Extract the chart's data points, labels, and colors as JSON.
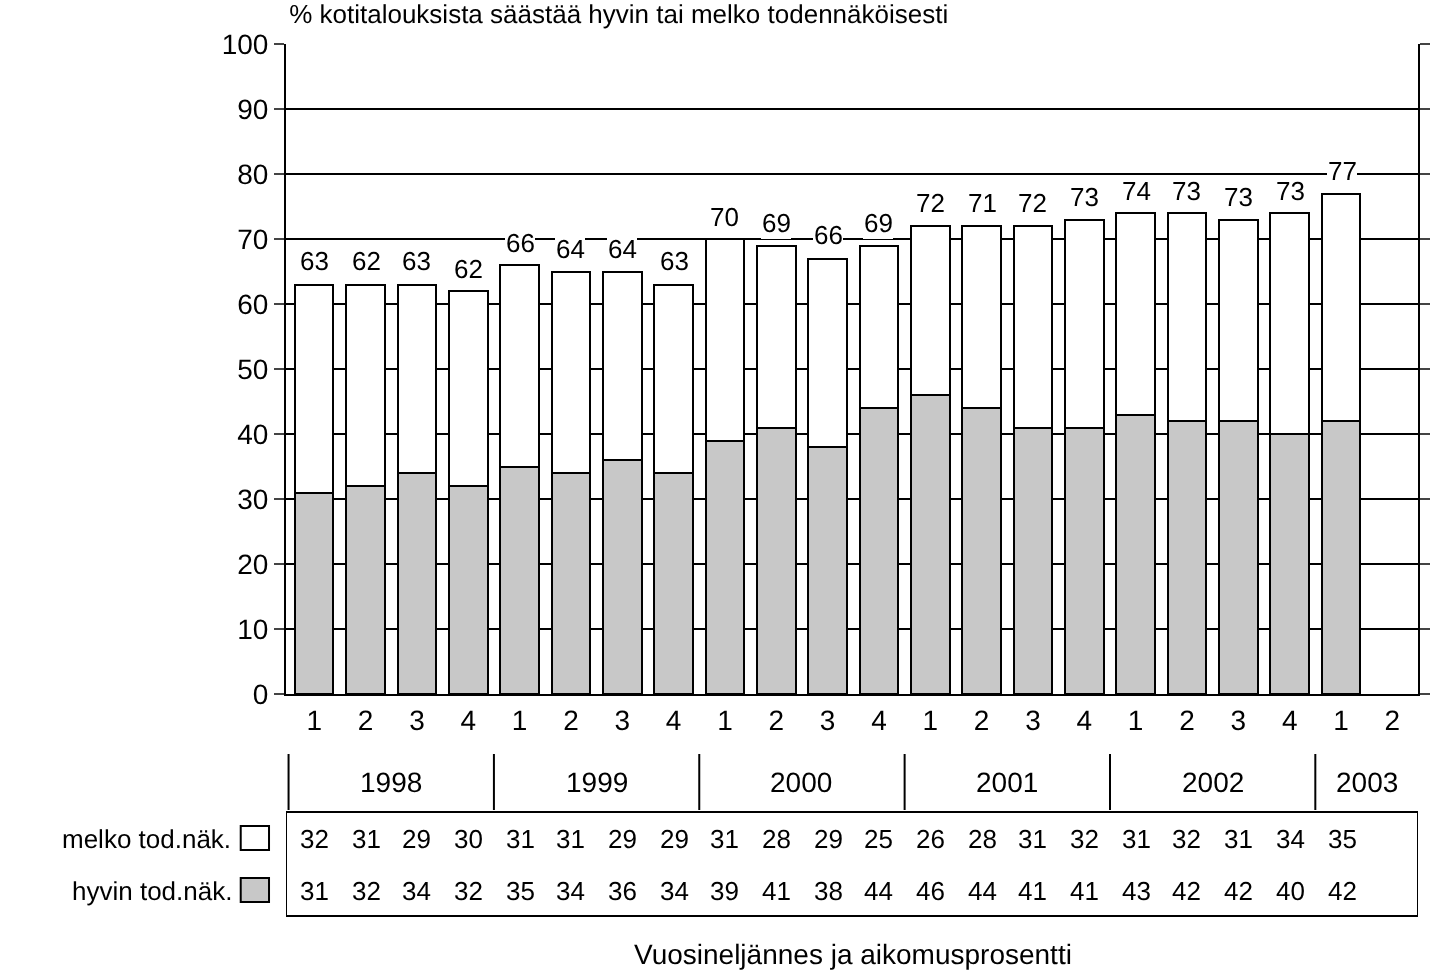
{
  "chart_data": {
    "type": "bar",
    "title": "% kotitalouksista säästää hyvin tai melko todennäköisesti",
    "categories": [
      "1",
      "2",
      "3",
      "4",
      "1",
      "2",
      "3",
      "4",
      "1",
      "2",
      "3",
      "4",
      "1",
      "2",
      "3",
      "4",
      "1",
      "2",
      "3",
      "4",
      "1",
      "2"
    ],
    "annotations": [
      "1998",
      "1999",
      "2000",
      "2001",
      "2002",
      "2003",
      "Vuosineljännes ja aikomusprosentti"
    ],
    "stacked": true,
    "series": [
      {
        "name": "hyvin tod.näk.",
        "color": "#c8c8c8",
        "values": [
          31,
          32,
          34,
          32,
          35,
          34,
          36,
          34,
          39,
          41,
          38,
          44,
          46,
          44,
          41,
          41,
          43,
          42,
          42,
          40,
          42,
          null
        ]
      },
      {
        "name": "melko tod.näk.",
        "color": "#ffffff",
        "values": [
          32,
          31,
          29,
          30,
          31,
          31,
          29,
          29,
          31,
          28,
          29,
          25,
          26,
          28,
          31,
          32,
          31,
          32,
          31,
          34,
          35,
          null
        ]
      }
    ],
    "totals": [
      "63",
      "62",
      "63",
      "62",
      "66",
      "64",
      "64",
      "63",
      "70",
      "69",
      "66",
      "69",
      "72",
      "71",
      "72",
      "73",
      "74",
      "73",
      "73",
      "73",
      "77",
      null
    ],
    "data_labels": true,
    "ylim": [
      0,
      100
    ],
    "yticks": [
      0,
      10,
      20,
      30,
      40,
      50,
      60,
      70,
      80,
      90,
      100
    ],
    "grid": "y",
    "legend": "bottom left"
  }
}
